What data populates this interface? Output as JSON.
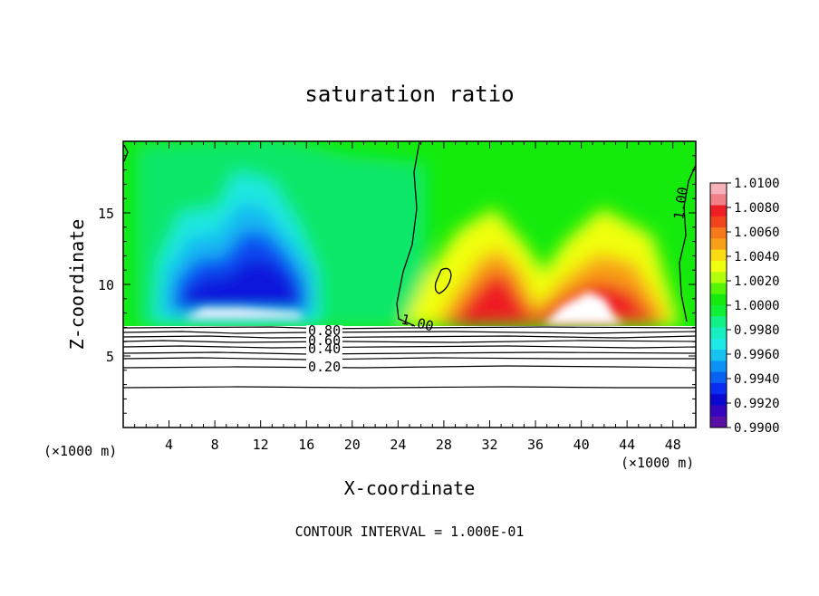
{
  "chart_data": {
    "type": "heatmap",
    "title": "saturation ratio",
    "xlabel": "X-coordinate",
    "ylabel": "Z-coordinate",
    "x_unit": "(×1000 m)",
    "y_unit": "(×1000 m)",
    "xlim": [
      0,
      50
    ],
    "ylim": [
      0,
      20
    ],
    "x_ticks": [
      "4",
      "8",
      "12",
      "16",
      "20",
      "24",
      "28",
      "32",
      "36",
      "40",
      "44",
      "48"
    ],
    "y_ticks": [
      "5",
      "10",
      "15"
    ],
    "footer": "CONTOUR INTERVAL = 1.000E-01",
    "contour_labels": [
      "1.00",
      "1.00",
      "0.80",
      "0.60",
      "0.40",
      "0.20"
    ],
    "colorbar": {
      "labels": [
        "1.0100",
        "1.0080",
        "1.0060",
        "1.0040",
        "1.0020",
        "1.0000",
        "0.9980",
        "0.9960",
        "0.9940",
        "0.9920",
        "0.9900"
      ],
      "colors": [
        "#f7b1b8",
        "#f28088",
        "#ee1e24",
        "#f2441c",
        "#f5781a",
        "#f8a018",
        "#fadc13",
        "#f0ff10",
        "#b3ff0e",
        "#55f505",
        "#14eb0c",
        "#0ff035",
        "#13f088",
        "#19eec0",
        "#1fe8e8",
        "#15c2f0",
        "#0b92f4",
        "#0a62f2",
        "#0a2ef0",
        "#0b08d2",
        "#3505c0",
        "#5a0fa5"
      ]
    }
  }
}
